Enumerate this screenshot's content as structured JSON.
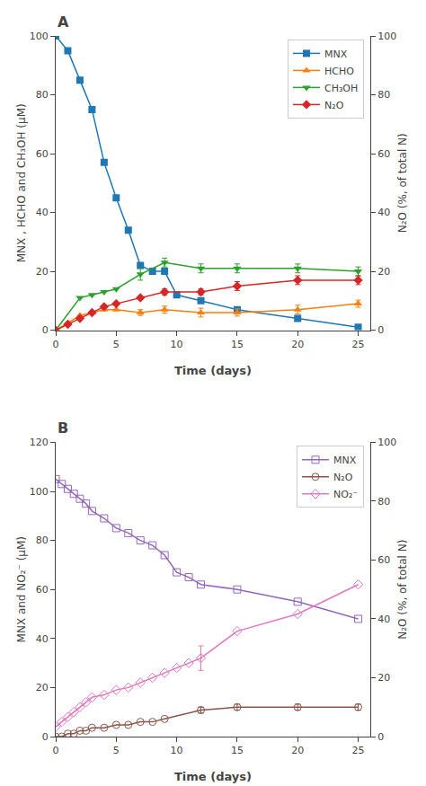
{
  "chart_data": [
    {
      "type": "line",
      "title": "A",
      "xlabel": "Time (days)",
      "ylabel": "MNX , HCHO and CH₃OH (μM)",
      "y2label": "N₂O (%, of total N)",
      "xlim": [
        0,
        26
      ],
      "ylim": [
        0,
        100
      ],
      "y2lim": [
        0,
        100
      ],
      "xticks": [
        0,
        5,
        10,
        15,
        20,
        25
      ],
      "yticks": [
        0,
        20,
        40,
        60,
        80,
        100
      ],
      "y2ticks": [
        0,
        20,
        40,
        60,
        80,
        100
      ],
      "grid": false,
      "legend": "upper right",
      "series": [
        {
          "name": "MNX",
          "marker": "square",
          "x": [
            0,
            1,
            2,
            3,
            4,
            5,
            6,
            7,
            8,
            9,
            10,
            12,
            15,
            20,
            25
          ],
          "values": [
            100,
            95,
            85,
            75,
            57,
            45,
            34,
            22,
            20,
            20,
            12,
            10,
            7,
            4,
            1
          ]
        },
        {
          "name": "HCHO",
          "marker": "triangle-up",
          "x": [
            0,
            2,
            3,
            4,
            5,
            7,
            9,
            12,
            15,
            20,
            25
          ],
          "values": [
            0,
            5,
            6,
            7,
            7,
            6,
            7,
            6,
            6,
            7,
            9
          ],
          "error_x": [
            7,
            9,
            12,
            15,
            20,
            25
          ],
          "error": [
            1.0,
            1.2,
            1.5,
            1.2,
            1.5,
            1.2
          ]
        },
        {
          "name": "CH₃OH",
          "marker": "triangle-down",
          "x": [
            0,
            2,
            3,
            4,
            5,
            7,
            9,
            12,
            15,
            20,
            25
          ],
          "values": [
            0,
            11,
            12,
            13,
            14,
            19,
            23,
            21,
            21,
            21,
            20
          ],
          "error_x": [
            7,
            9,
            12,
            15,
            20,
            25
          ],
          "error": [
            2.0,
            1.5,
            1.5,
            1.5,
            1.5,
            1.5
          ]
        },
        {
          "name": "N₂O",
          "marker": "diamond",
          "axis": "y2",
          "x": [
            0,
            1,
            2,
            3,
            4,
            5,
            7,
            9,
            12,
            15,
            20,
            25
          ],
          "values": [
            0,
            2,
            4,
            6,
            8,
            9,
            11,
            13,
            13,
            15,
            17,
            17
          ],
          "error_x": [
            9,
            12,
            15,
            20,
            25
          ],
          "error": [
            1.0,
            1.0,
            1.5,
            1.5,
            1.5
          ]
        }
      ]
    },
    {
      "type": "line",
      "title": "B",
      "xlabel": "Time (days)",
      "ylabel": "MNX and NO₂⁻ (μM)",
      "y2label": "N₂O (%, of total N)",
      "xlim": [
        0,
        26
      ],
      "ylim": [
        0,
        120
      ],
      "y2lim": [
        0,
        100
      ],
      "xticks": [
        0,
        5,
        10,
        15,
        20,
        25
      ],
      "yticks": [
        0,
        20,
        40,
        60,
        80,
        100,
        120
      ],
      "y2ticks": [
        0,
        20,
        40,
        60,
        80,
        100
      ],
      "grid": false,
      "legend": "upper right",
      "series": [
        {
          "name": "MNX",
          "marker": "square-open",
          "x": [
            0,
            0.5,
            1,
            1.5,
            2,
            2.5,
            3,
            4,
            5,
            6,
            7,
            8,
            9,
            10,
            11,
            12,
            15,
            20,
            25
          ],
          "values": [
            105,
            103,
            101,
            99,
            97,
            95,
            92,
            89,
            85,
            83,
            80,
            78,
            74,
            67,
            65,
            62,
            60,
            55,
            48
          ]
        },
        {
          "name": "N₂O",
          "marker": "circle-open",
          "axis": "y2",
          "x": [
            0,
            0.5,
            1,
            1.5,
            2,
            2.5,
            3,
            4,
            5,
            6,
            7,
            8,
            9,
            12,
            15,
            20,
            25
          ],
          "values": [
            0,
            0,
            1,
            1,
            2,
            2,
            3,
            3,
            4,
            4,
            5,
            5,
            6,
            9,
            10,
            10,
            10
          ],
          "error_x": [
            12,
            15,
            20,
            25
          ],
          "error": [
            1.0,
            1.0,
            1.0,
            1.0
          ]
        },
        {
          "name": "NO₂⁻",
          "marker": "diamond-open",
          "x": [
            0,
            0.5,
            1,
            1.5,
            2,
            2.5,
            3,
            4,
            5,
            6,
            7,
            8,
            9,
            10,
            11,
            12,
            15,
            20,
            25
          ],
          "values": [
            4,
            6,
            8,
            10,
            12,
            14,
            16,
            17,
            19,
            20,
            22,
            24,
            26,
            28,
            30,
            32,
            43,
            50,
            62
          ],
          "error_x": [
            12
          ],
          "error": [
            5.0
          ]
        }
      ]
    }
  ]
}
